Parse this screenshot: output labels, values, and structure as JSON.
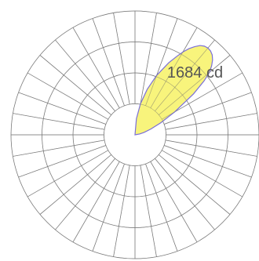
{
  "chart_data": {
    "type": "polar-area",
    "title": "",
    "peak_label": "1684 cd",
    "peak_value": 1684,
    "unit": "cd",
    "radial_max": 1840,
    "angular_spokes": 36,
    "grid_rings": 4,
    "grid": true,
    "fill_color": "#f7f36a",
    "line_color": "#7a6fd8",
    "grid_color": "#7a7a7a",
    "series": [
      {
        "angle_deg": [
          0,
          5,
          10,
          15,
          20,
          25,
          28,
          30,
          32,
          34,
          36,
          38,
          40,
          42,
          44,
          46,
          48,
          50,
          52,
          55,
          60,
          65,
          70,
          75,
          80,
          90
        ],
        "values": [
          0,
          240,
          470,
          700,
          940,
          1180,
          1320,
          1420,
          1510,
          1580,
          1640,
          1672,
          1684,
          1676,
          1650,
          1600,
          1530,
          1440,
          1300,
          1060,
          680,
          420,
          250,
          140,
          70,
          0
        ]
      }
    ]
  }
}
